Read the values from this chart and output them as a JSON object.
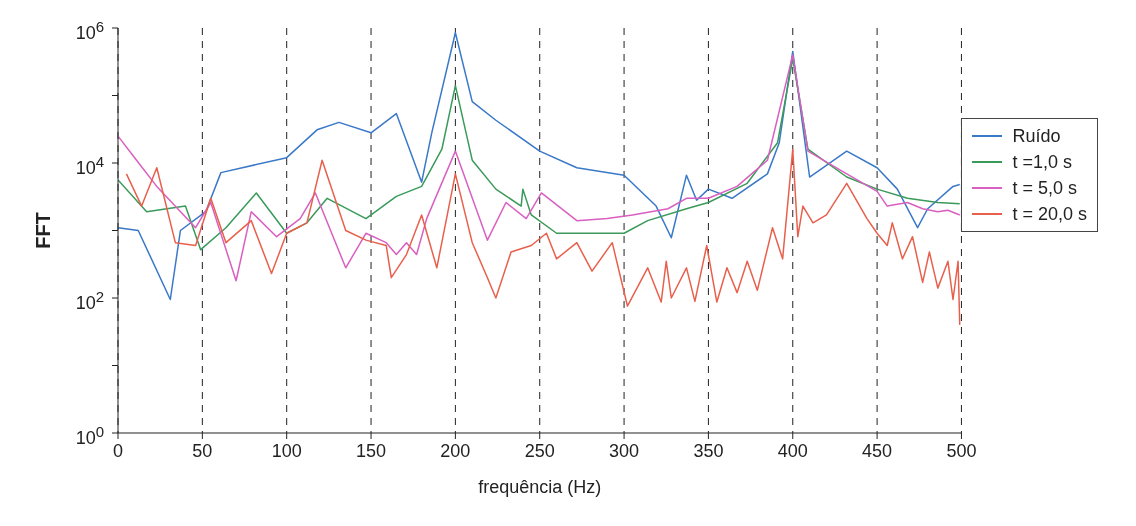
{
  "chart_data": {
    "type": "line",
    "xlabel": "frequência (Hz)",
    "ylabel": "FFT",
    "log": "y",
    "grid": "x",
    "legend": "right",
    "xlim": [
      0,
      500
    ],
    "xticks": [
      0,
      50,
      100,
      150,
      200,
      250,
      300,
      350,
      400,
      450,
      500
    ],
    "ylim": [
      1,
      1000000
    ],
    "yticks": [
      {
        "value": 1,
        "label": "10$^{0}$"
      },
      {
        "value": 10,
        "label": null
      },
      {
        "value": 100,
        "label": "10$^{2}$"
      },
      {
        "value": 1000,
        "label": null
      },
      {
        "value": 10000,
        "label": "10$^{4}$"
      },
      {
        "value": 100000,
        "label": null
      },
      {
        "value": 1000000,
        "label": "10$^{6}$"
      }
    ],
    "series": [
      {
        "name": "Ruído",
        "color": "#3a78c8",
        "x": [
          0,
          12,
          31,
          37,
          52,
          61,
          100,
          118,
          131,
          150,
          165,
          180,
          186,
          200,
          210,
          224,
          250,
          272,
          300,
          319,
          328,
          337,
          343,
          350,
          364,
          385,
          392,
          400,
          410,
          432,
          450,
          462,
          474,
          480,
          495,
          499
        ],
        "values": [
          1100,
          1000,
          95,
          1000,
          1900,
          7200,
          12000,
          31000,
          40000,
          28000,
          54000,
          5200,
          28000,
          850000,
          81000,
          43000,
          15000,
          8500,
          6600,
          2300,
          780,
          6600,
          2800,
          4100,
          3000,
          6900,
          20000,
          450000,
          6200,
          15000,
          8500,
          4100,
          1100,
          2100,
          4500,
          4800
        ]
      },
      {
        "name": "t =1,0 s",
        "color": "#3a9a5a",
        "x": [
          0,
          17,
          40,
          49,
          64,
          82,
          100,
          112,
          124,
          147,
          165,
          180,
          192,
          200,
          210,
          224,
          239,
          240,
          245,
          260,
          300,
          314,
          337,
          350,
          373,
          391,
          400,
          409,
          432,
          450,
          468,
          486,
          499
        ],
        "values": [
          5600,
          1900,
          2300,
          520,
          1100,
          3600,
          910,
          1300,
          3000,
          1500,
          3200,
          4500,
          16000,
          140000,
          11000,
          4100,
          2300,
          4100,
          1700,
          910,
          910,
          1400,
          2100,
          2600,
          5000,
          20000,
          350000,
          16000,
          6200,
          4100,
          3000,
          2600,
          2500
        ]
      },
      {
        "name": "t = 5,0 s",
        "color": "#d95fc0",
        "x": [
          0,
          11,
          23,
          46,
          55,
          70,
          79,
          94,
          108,
          117,
          135,
          147,
          159,
          165,
          171,
          177,
          183,
          200,
          219,
          230,
          242,
          251,
          272,
          290,
          305,
          326,
          337,
          350,
          367,
          385,
          400,
          409,
          432,
          450,
          456,
          468,
          477,
          486,
          492,
          499
        ],
        "values": [
          25000,
          11000,
          4500,
          1100,
          2600,
          180,
          1900,
          810,
          1500,
          3600,
          280,
          910,
          660,
          440,
          660,
          440,
          1500,
          15000,
          720,
          2600,
          1500,
          3600,
          1400,
          1500,
          1700,
          2100,
          3000,
          3000,
          4500,
          11000,
          400000,
          15000,
          6900,
          3800,
          2300,
          2600,
          2100,
          1900,
          2000,
          1700
        ]
      },
      {
        "name": "t = 20,0 s",
        "color": "#e8604c",
        "x": [
          5,
          14,
          23,
          34,
          46,
          55,
          64,
          79,
          91,
          100,
          112,
          121,
          135,
          147,
          159,
          162,
          171,
          180,
          189,
          200,
          210,
          219,
          224,
          233,
          245,
          254,
          260,
          272,
          281,
          293,
          302,
          314,
          322,
          325,
          328,
          337,
          342,
          349,
          355,
          361,
          367,
          373,
          379,
          388,
          394,
          400,
          403,
          406,
          412,
          420,
          432,
          444,
          450,
          456,
          459,
          465,
          471,
          477,
          481,
          486,
          492,
          495,
          498,
          499
        ],
        "values": [
          6900,
          2300,
          8500,
          660,
          600,
          3000,
          660,
          1400,
          230,
          910,
          1300,
          11000,
          1000,
          720,
          600,
          200,
          440,
          1700,
          280,
          6900,
          660,
          200,
          100,
          480,
          600,
          910,
          380,
          660,
          250,
          660,
          76,
          280,
          87,
          350,
          100,
          280,
          89,
          600,
          87,
          280,
          120,
          350,
          130,
          1100,
          380,
          16000,
          810,
          2300,
          1300,
          1700,
          5000,
          1500,
          910,
          600,
          1300,
          380,
          810,
          170,
          480,
          140,
          350,
          95,
          350,
          40
        ]
      }
    ]
  }
}
